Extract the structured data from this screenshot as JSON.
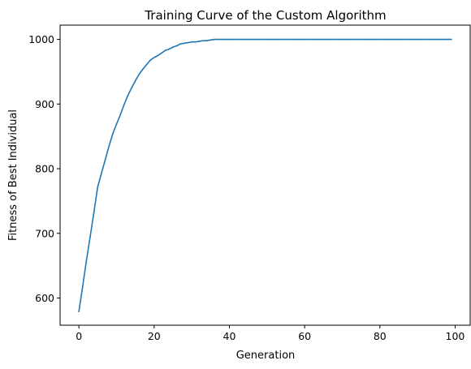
{
  "chart_data": {
    "type": "line",
    "title": "Training Curve of the Custom Algorithm",
    "xlabel": "Generation",
    "ylabel": "Fitness of Best Individual",
    "xlim": [
      -5,
      104
    ],
    "ylim": [
      558,
      1022
    ],
    "xticks": [
      0,
      20,
      40,
      60,
      80,
      100
    ],
    "yticks": [
      600,
      700,
      800,
      900,
      1000
    ],
    "grid": false,
    "series_color": "#1f77b4",
    "x": [
      0,
      1,
      2,
      3,
      4,
      5,
      6,
      7,
      8,
      9,
      10,
      11,
      12,
      13,
      14,
      15,
      16,
      17,
      18,
      19,
      20,
      21,
      22,
      23,
      24,
      25,
      26,
      27,
      28,
      29,
      30,
      31,
      32,
      33,
      34,
      35,
      36,
      37,
      38,
      39,
      40,
      41,
      42,
      43,
      44,
      45,
      46,
      47,
      48,
      49,
      50,
      51,
      52,
      53,
      54,
      55,
      56,
      57,
      58,
      59,
      60,
      61,
      62,
      63,
      64,
      65,
      66,
      67,
      68,
      69,
      70,
      71,
      72,
      73,
      74,
      75,
      76,
      77,
      78,
      79,
      80,
      81,
      82,
      83,
      84,
      85,
      86,
      87,
      88,
      89,
      90,
      91,
      92,
      93,
      94,
      95,
      96,
      97,
      98,
      99
    ],
    "y": [
      579,
      618,
      658,
      695,
      733,
      772,
      793,
      814,
      835,
      854,
      869,
      883,
      899,
      913,
      925,
      936,
      946,
      954,
      961,
      968,
      972,
      975,
      979,
      983,
      985,
      988,
      990,
      993,
      994,
      995,
      996,
      996,
      997,
      998,
      998,
      999,
      1000,
      1000,
      1000,
      1000,
      1000,
      1000,
      1000,
      1000,
      1000,
      1000,
      1000,
      1000,
      1000,
      1000,
      1000,
      1000,
      1000,
      1000,
      1000,
      1000,
      1000,
      1000,
      1000,
      1000,
      1000,
      1000,
      1000,
      1000,
      1000,
      1000,
      1000,
      1000,
      1000,
      1000,
      1000,
      1000,
      1000,
      1000,
      1000,
      1000,
      1000,
      1000,
      1000,
      1000,
      1000,
      1000,
      1000,
      1000,
      1000,
      1000,
      1000,
      1000,
      1000,
      1000,
      1000,
      1000,
      1000,
      1000,
      1000,
      1000,
      1000,
      1000,
      1000,
      1000
    ]
  }
}
